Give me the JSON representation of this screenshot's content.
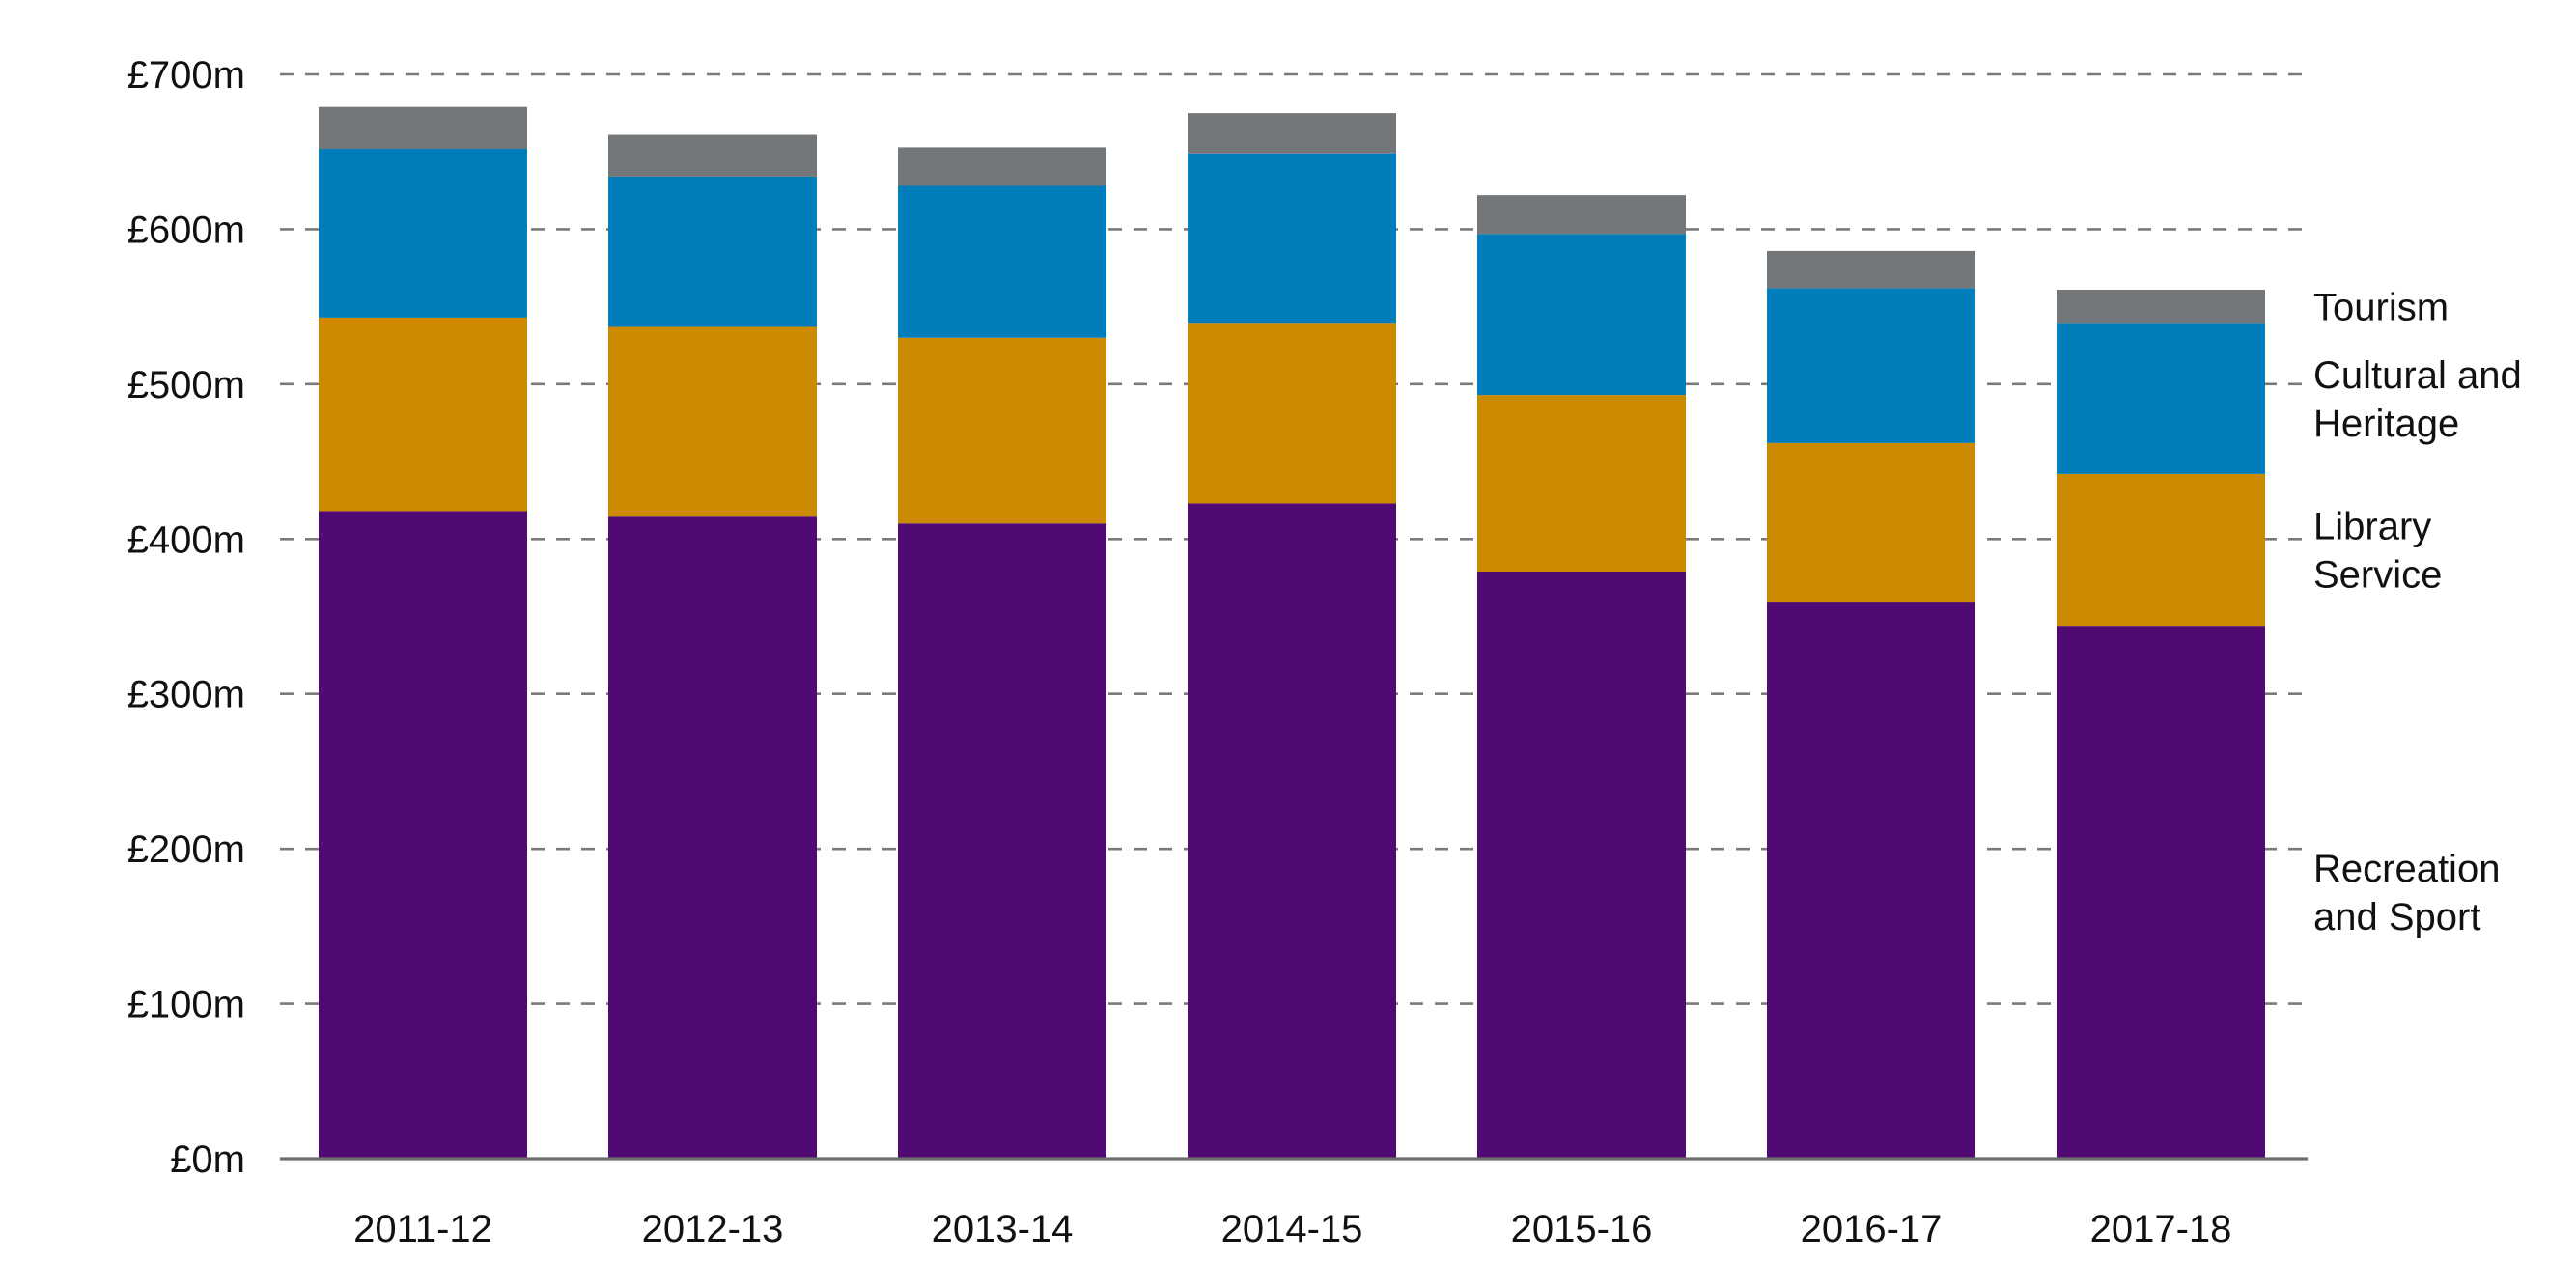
{
  "chart_data": {
    "type": "bar",
    "stacked": true,
    "categories": [
      "2011-12",
      "2012-13",
      "2013-14",
      "2014-15",
      "2015-16",
      "2016-17",
      "2017-18"
    ],
    "series": [
      {
        "name": "Recreation and Sport",
        "label_lines": [
          "Recreation",
          "and Sport"
        ],
        "color": "#4F0A73",
        "values": [
          418,
          415,
          410,
          423,
          379,
          359,
          344
        ]
      },
      {
        "name": "Library Service",
        "label_lines": [
          "Library",
          "Service"
        ],
        "color": "#CC8A00",
        "values": [
          125,
          122,
          120,
          116,
          114,
          103,
          98
        ]
      },
      {
        "name": "Cultural and Heritage",
        "label_lines": [
          "Cultural and",
          "Heritage"
        ],
        "color": "#007DBA",
        "values": [
          109,
          97,
          98,
          110,
          104,
          100,
          97
        ]
      },
      {
        "name": "Tourism",
        "label_lines": [
          "Tourism"
        ],
        "color": "#737779",
        "values": [
          27,
          27,
          25,
          26,
          25,
          24,
          22
        ]
      }
    ],
    "y_ticks": [
      {
        "value": 0,
        "label": "£0m"
      },
      {
        "value": 100,
        "label": "£100m"
      },
      {
        "value": 200,
        "label": "£200m"
      },
      {
        "value": 300,
        "label": "£300m"
      },
      {
        "value": 400,
        "label": "£400m"
      },
      {
        "value": 500,
        "label": "£500m"
      },
      {
        "value": 600,
        "label": "£600m"
      },
      {
        "value": 700,
        "label": "£700m"
      }
    ],
    "ylim": [
      0,
      700
    ],
    "grid": true,
    "legend": "right, labels aligned with last bar"
  }
}
